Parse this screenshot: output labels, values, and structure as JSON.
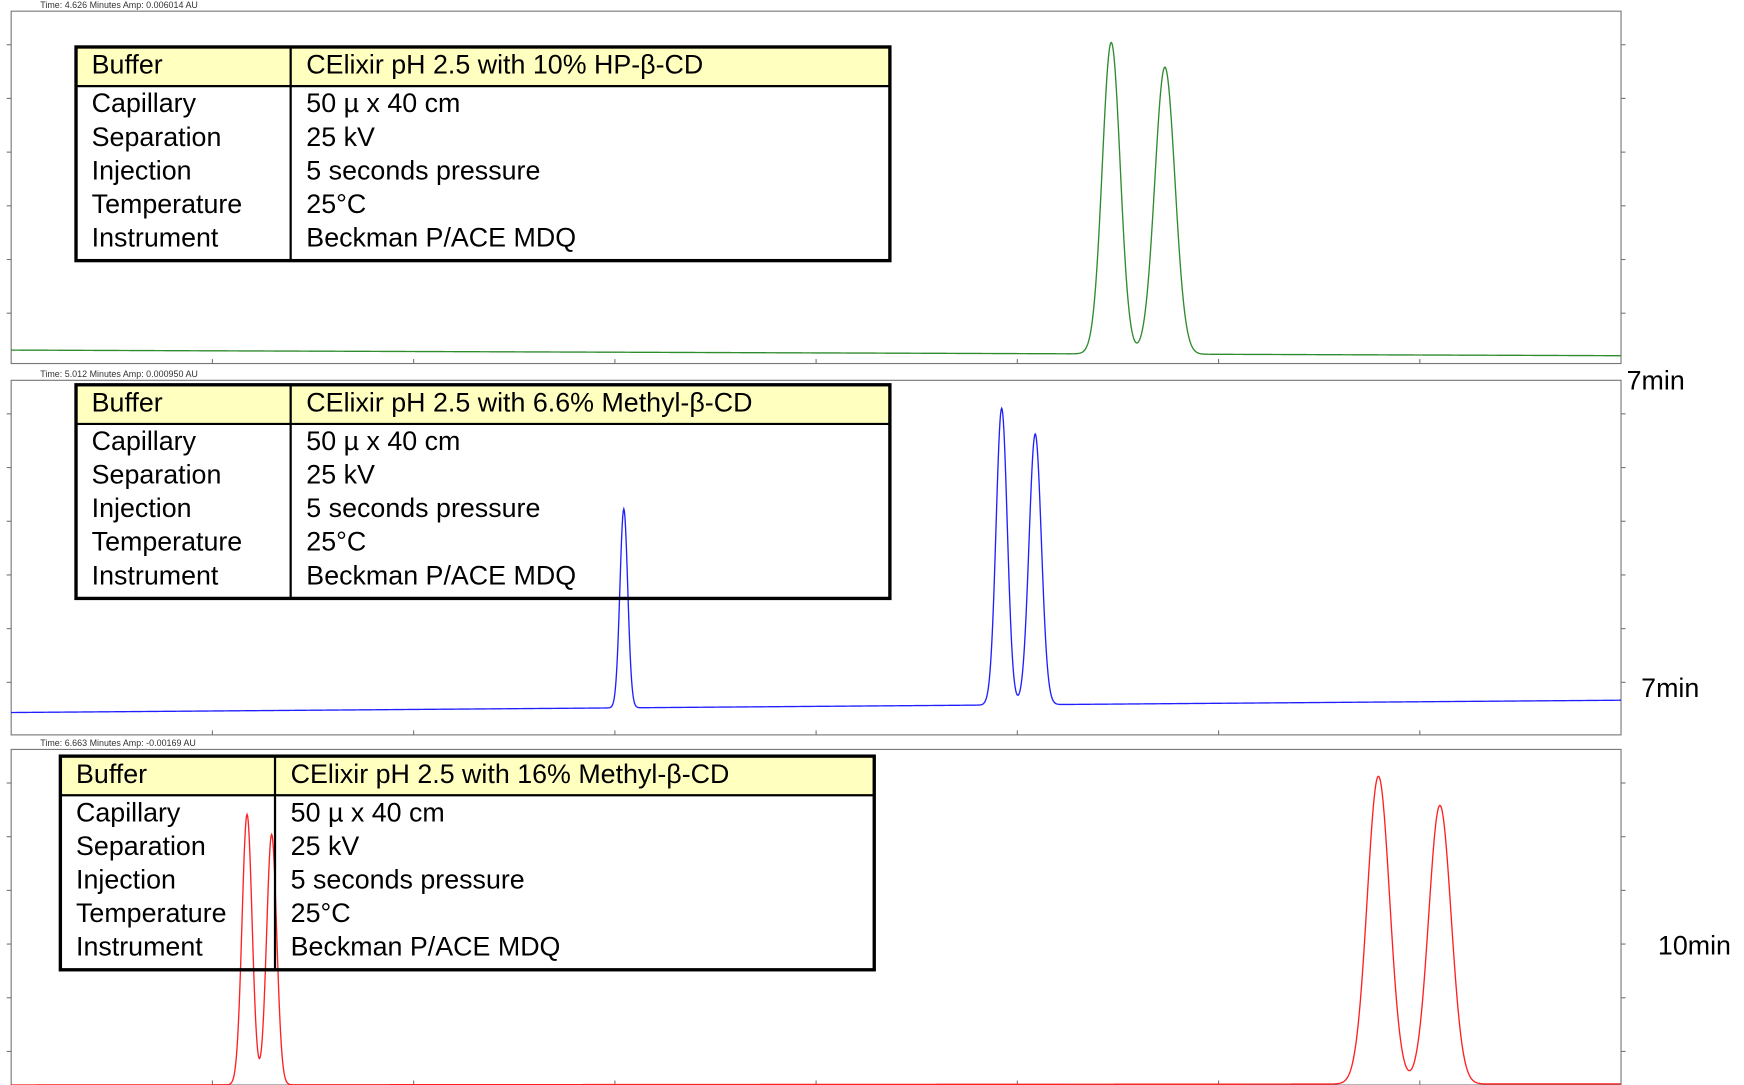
{
  "panels": [
    {
      "header": "Time:   4.626 Minutes   Amp:   0.006014 AU",
      "table": {
        "rows": [
          [
            "Buffer",
            "CElixir pH 2.5 with 10% HP-β-CD"
          ],
          [
            "Capillary",
            "50 µ x 40 cm"
          ],
          [
            "Separation",
            "25 kV"
          ],
          [
            "Injection",
            "5 seconds pressure"
          ],
          [
            "Temperature",
            "25°C"
          ],
          [
            "Instrument",
            "Beckman P/ACE MDQ"
          ]
        ]
      }
    },
    {
      "header": "Time:   5.012 Minutes   Amp:   0.000950 AU",
      "table": {
        "rows": [
          [
            "Buffer",
            "CElixir pH 2.5 with 6.6% Methyl-β-CD"
          ],
          [
            "Capillary",
            "50 µ x 40 cm"
          ],
          [
            "Separation",
            "25 kV"
          ],
          [
            "Injection",
            "5 seconds pressure"
          ],
          [
            "Temperature",
            "25°C"
          ],
          [
            "Instrument",
            "Beckman P/ACE MDQ"
          ]
        ]
      }
    },
    {
      "header": "Time:   6.663 Minutes   Amp:   -0.00169 AU",
      "table": {
        "rows": [
          [
            "Buffer",
            "CElixir pH 2.5 with 16% Methyl-β-CD"
          ],
          [
            "Capillary",
            "50 µ x 40 cm"
          ],
          [
            "Separation",
            "25 kV"
          ],
          [
            "Injection",
            "5 seconds pressure"
          ],
          [
            "Temperature",
            "25°C"
          ],
          [
            "Instrument",
            "Beckman P/ACE MDQ"
          ]
        ]
      }
    }
  ],
  "side_labels": [
    "7min",
    "7min",
    "10min"
  ]
}
